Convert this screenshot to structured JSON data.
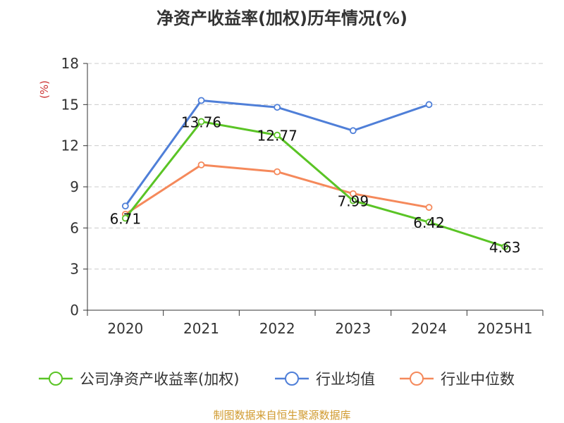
{
  "title": "净资产收益率(加权)历年情况(%)",
  "footer": "制图数据来自恒生聚源数据库",
  "chart_data": {
    "type": "line",
    "title": "净资产收益率(加权)历年情况(%)",
    "ylabel": "(%)",
    "xlabel": "",
    "categories": [
      "2020",
      "2021",
      "2022",
      "2023",
      "2024",
      "2025H1"
    ],
    "ylim": [
      0,
      18
    ],
    "yticks": [
      0,
      3,
      6,
      9,
      12,
      15,
      18
    ],
    "grid": true,
    "legend_position": "bottom",
    "series": [
      {
        "name": "公司净资产收益率(加权)",
        "color": "#5ac425",
        "values": [
          6.71,
          13.76,
          12.77,
          7.99,
          6.42,
          4.63
        ],
        "show_labels": true
      },
      {
        "name": "行业均值",
        "color": "#4f7fd8",
        "values": [
          7.6,
          15.3,
          14.8,
          13.1,
          15.0,
          null
        ],
        "show_labels": false
      },
      {
        "name": "行业中位数",
        "color": "#f5895b",
        "values": [
          7.0,
          10.6,
          10.1,
          8.5,
          7.5,
          null
        ],
        "show_labels": false
      }
    ]
  }
}
